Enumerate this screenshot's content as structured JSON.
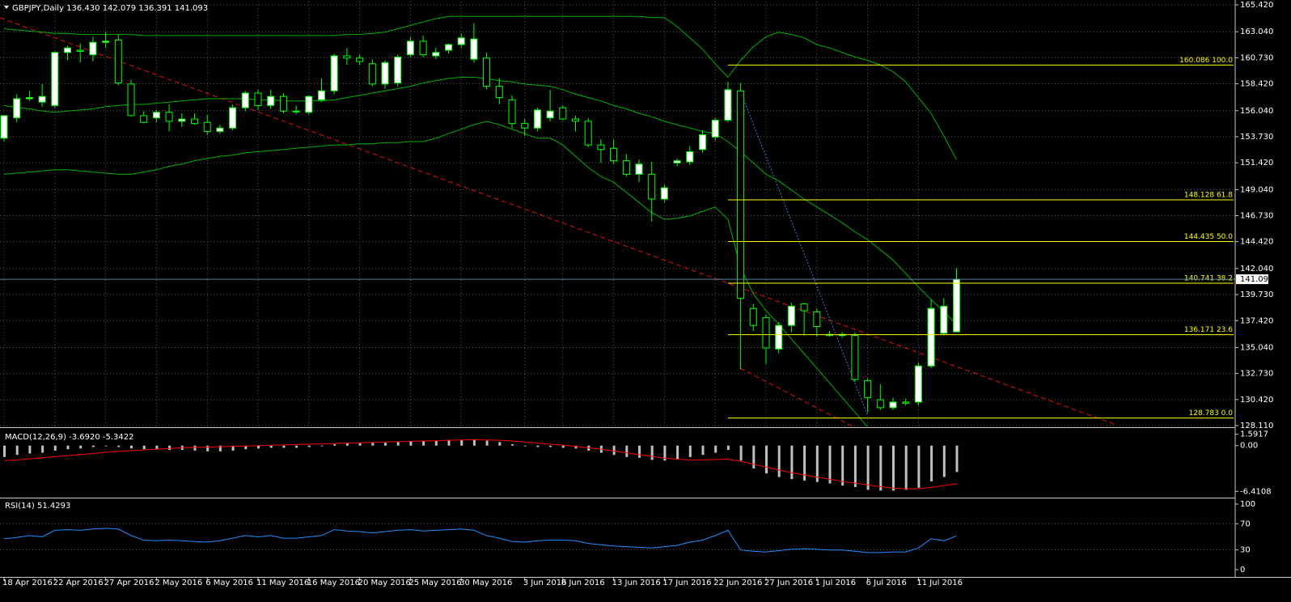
{
  "chart_data": [
    {
      "type": "candlestick",
      "title": "GBPJPY,Daily  136.430 142.079 136.391 141.093",
      "categories": [
        "18 Apr 2016",
        null,
        null,
        null,
        "22 Apr 2016",
        null,
        null,
        null,
        "27 Apr 2016",
        null,
        null,
        null,
        "2 May 2016",
        null,
        null,
        null,
        "6 May 2016",
        null,
        null,
        null,
        "11 May 2016",
        null,
        null,
        null,
        "16 May 2016",
        null,
        null,
        null,
        "20 May 2016",
        null,
        null,
        null,
        "25 May 2016",
        null,
        null,
        null,
        "30 May 2016",
        null,
        null,
        null,
        null,
        "3 Jun 2016",
        null,
        null,
        "8 Jun 2016",
        null,
        null,
        null,
        "13 Jun 2016",
        null,
        null,
        null,
        "17 Jun 2016",
        null,
        null,
        null,
        "22 Jun 2016",
        null,
        null,
        null,
        "27 Jun 2016",
        null,
        null,
        null,
        "1 Jul 2016",
        null,
        null,
        null,
        "6 Jul 2016",
        null,
        null,
        null,
        "11 Jul 2016",
        null,
        null,
        null
      ],
      "open": [
        153.6,
        155.4,
        157.1,
        156.8,
        156.5,
        161.2,
        161.4,
        161.0,
        162.1,
        162.3,
        158.4,
        155.6,
        155.4,
        155.9,
        155.1,
        155.3,
        155.0,
        154.2,
        154.5,
        156.3,
        157.6,
        156.5,
        157.3,
        156.0,
        155.9,
        157.0,
        157.8,
        160.9,
        160.7,
        160.2,
        158.4,
        158.5,
        161.0,
        162.2,
        160.9,
        161.4,
        161.9,
        160.6,
        160.7,
        158.2,
        157.0,
        154.9,
        154.5,
        155.4,
        156.3,
        155.3,
        155.1,
        153.0,
        152.7,
        151.6,
        150.4,
        150.4,
        148.2,
        151.4,
        151.5,
        152.6,
        153.7,
        155.2,
        157.8,
        138.5,
        137.7,
        134.9,
        137.0,
        138.9,
        138.2,
        136.2,
        136.1,
        136.1,
        132.1,
        130.4,
        129.7,
        130.2,
        130.2,
        133.4,
        136.3,
        136.43
      ],
      "high": [
        155.6,
        157.5,
        157.8,
        158.4,
        161.3,
        161.8,
        162.0,
        162.6,
        163.0,
        162.8,
        158.8,
        156.0,
        156.1,
        156.6,
        155.8,
        155.8,
        155.7,
        154.8,
        156.6,
        157.8,
        157.9,
        157.9,
        157.6,
        156.5,
        157.4,
        158.9,
        161.1,
        161.6,
        161.0,
        160.6,
        160.5,
        161.0,
        162.6,
        162.7,
        161.6,
        162.0,
        162.9,
        163.8,
        161.2,
        158.9,
        157.4,
        155.3,
        156.3,
        157.9,
        156.5,
        155.6,
        155.4,
        153.5,
        153.5,
        152.2,
        151.7,
        151.5,
        149.5,
        151.8,
        152.9,
        154.3,
        155.4,
        158.6,
        158.5,
        138.9,
        138.0,
        137.3,
        139.0,
        139.0,
        138.5,
        136.5,
        136.4,
        136.4,
        132.3,
        131.8,
        130.6,
        130.5,
        133.7,
        139.3,
        139.4,
        142.079
      ],
      "low": [
        153.3,
        155.0,
        156.9,
        156.4,
        156.3,
        160.5,
        160.3,
        160.4,
        161.6,
        158.3,
        155.5,
        154.9,
        155.0,
        154.2,
        154.6,
        154.8,
        153.9,
        154.0,
        154.3,
        156.0,
        156.1,
        156.2,
        155.8,
        155.7,
        155.7,
        156.8,
        157.5,
        160.1,
        160.1,
        158.2,
        158.0,
        158.2,
        160.8,
        160.8,
        160.6,
        161.1,
        161.6,
        160.3,
        157.9,
        156.6,
        154.5,
        153.8,
        154.2,
        155.1,
        155.2,
        154.2,
        152.8,
        151.4,
        151.3,
        150.2,
        149.7,
        146.2,
        147.9,
        151.1,
        151.2,
        152.3,
        153.4,
        155.0,
        133.1,
        136.5,
        133.6,
        134.5,
        136.4,
        136.1,
        136.0,
        136.0,
        135.9,
        132.0,
        129.3,
        129.5,
        129.5,
        129.9,
        129.9,
        133.2,
        136.1,
        136.391
      ],
      "close": [
        155.6,
        157.1,
        157.2,
        157.3,
        161.2,
        161.6,
        161.3,
        162.1,
        162.2,
        158.5,
        155.6,
        155.0,
        155.9,
        155.1,
        155.3,
        154.9,
        154.2,
        154.5,
        156.3,
        157.6,
        156.5,
        157.3,
        156.0,
        156.0,
        157.3,
        157.8,
        160.9,
        160.7,
        160.4,
        158.4,
        160.3,
        160.8,
        162.2,
        161.0,
        161.2,
        161.9,
        162.5,
        162.4,
        158.2,
        157.2,
        154.9,
        154.5,
        156.1,
        156.0,
        155.3,
        155.1,
        153.0,
        152.6,
        151.6,
        150.4,
        151.3,
        148.2,
        149.2,
        151.6,
        152.4,
        153.9,
        155.2,
        157.9,
        139.4,
        137.0,
        135.0,
        137.0,
        138.7,
        138.3,
        136.9,
        136.1,
        136.2,
        132.2,
        130.6,
        129.7,
        130.2,
        130.1,
        133.4,
        138.5,
        138.7,
        141.093
      ],
      "up_color": "#ffffff",
      "down_color": "#000000",
      "wick_color": "#00ff00",
      "series": [
        {
          "color": "#00b000",
          "values": [
            163.3,
            163.2,
            163.1,
            163.0,
            162.9,
            162.9,
            162.8,
            162.8,
            162.8,
            162.8,
            162.8,
            162.7,
            162.7,
            162.7,
            162.7,
            162.7,
            162.7,
            162.7,
            162.7,
            162.7,
            162.7,
            162.7,
            162.7,
            162.7,
            162.7,
            162.7,
            162.7,
            162.8,
            162.8,
            162.9,
            163.0,
            163.3,
            163.6,
            163.9,
            164.2,
            164.4,
            164.4,
            164.4,
            164.4,
            164.4,
            164.4,
            164.4,
            164.4,
            164.4,
            164.4,
            164.4,
            164.4,
            164.4,
            164.4,
            164.4,
            164.4,
            164.3,
            164.3,
            163.5,
            162.5,
            161.5,
            160.2,
            159.0,
            160.5,
            161.7,
            162.6,
            163.0,
            162.8,
            162.5,
            161.9,
            161.6,
            161.2,
            160.8,
            160.5,
            160.1,
            159.5,
            158.6,
            157.2,
            155.8,
            153.8,
            151.7
          ]
        },
        {
          "color": "#00b000",
          "values": [
            156.5,
            156.3,
            156.2,
            156.0,
            155.9,
            156.0,
            156.1,
            156.2,
            156.4,
            156.5,
            156.6,
            156.6,
            156.7,
            156.8,
            156.9,
            157.0,
            157.1,
            157.1,
            157.1,
            157.1,
            157.0,
            157.0,
            156.9,
            156.9,
            156.9,
            156.9,
            157.0,
            157.2,
            157.4,
            157.6,
            157.8,
            158.0,
            158.2,
            158.5,
            158.7,
            158.9,
            159.0,
            159.0,
            158.9,
            158.7,
            158.6,
            158.4,
            158.3,
            158.2,
            157.9,
            157.5,
            157.2,
            156.9,
            156.5,
            156.2,
            155.8,
            155.5,
            155.1,
            154.8,
            154.5,
            154.2,
            154.0,
            153.3,
            152.4,
            151.4,
            150.4,
            149.8,
            149.0,
            148.2,
            147.5,
            146.8,
            146.1,
            145.3,
            144.6,
            143.7,
            142.8,
            141.6,
            140.4,
            139.3,
            138.2,
            137.1
          ]
        },
        {
          "color": "#00b000",
          "values": [
            150.4,
            150.5,
            150.6,
            150.7,
            150.8,
            150.8,
            150.7,
            150.6,
            150.5,
            150.4,
            150.4,
            150.6,
            150.8,
            151.1,
            151.3,
            151.6,
            151.8,
            152.0,
            152.1,
            152.3,
            152.4,
            152.5,
            152.6,
            152.7,
            152.8,
            152.9,
            153.0,
            153.0,
            153.1,
            153.1,
            153.2,
            153.2,
            153.3,
            153.3,
            153.6,
            154.0,
            154.4,
            154.8,
            155.1,
            154.8,
            154.4,
            154.0,
            153.6,
            153.6,
            153.0,
            152.0,
            151.0,
            150.2,
            149.7,
            148.8,
            147.9,
            147.0,
            146.4,
            146.5,
            146.7,
            147.1,
            147.5,
            146.4,
            142.1,
            139.8,
            138.3,
            137.1,
            135.8,
            134.5,
            133.2,
            131.9,
            130.6,
            129.3,
            128.0,
            null,
            null,
            null,
            null,
            null,
            null,
            null
          ]
        }
      ],
      "fib_levels": [
        {
          "value": 160.086,
          "label": "160.086 100.0"
        },
        {
          "value": 148.128,
          "label": "148.128 61.8"
        },
        {
          "value": 144.435,
          "label": "144.435 50.0"
        },
        {
          "value": 140.741,
          "label": "140.741 38.2"
        },
        {
          "value": 136.171,
          "label": "136.171 23.6"
        },
        {
          "value": 128.783,
          "label": "128.783 0.0"
        }
      ],
      "fib_color": "#ffff00",
      "last_price": 141.093,
      "ylim": [
        128.04,
        165.71
      ],
      "yticks": [
        {
          "value": 165.42,
          "label": "165.420"
        },
        {
          "value": 163.04,
          "label": "163.040"
        },
        {
          "value": 160.73,
          "label": "160.730"
        },
        {
          "value": 158.42,
          "label": "158.420"
        },
        {
          "value": 156.04,
          "label": "156.040"
        },
        {
          "value": 153.73,
          "label": "153.730"
        },
        {
          "value": 151.42,
          "label": "151.420"
        },
        {
          "value": 149.04,
          "label": "149.040"
        },
        {
          "value": 146.73,
          "label": "146.730"
        },
        {
          "value": 144.42,
          "label": "144.420"
        },
        {
          "value": 142.04,
          "label": "142.040"
        },
        {
          "value": 139.73,
          "label": "139.730"
        },
        {
          "value": 137.42,
          "label": "137.420"
        },
        {
          "value": 135.04,
          "label": "135.040"
        },
        {
          "value": 132.73,
          "label": "132.730"
        },
        {
          "value": 130.42,
          "label": "130.420"
        },
        {
          "value": 128.11,
          "label": "128.110"
        }
      ],
      "grid": true
    },
    {
      "type": "bar",
      "title": "MACD(12,26,9) -3.6920 -5.3422",
      "values": [
        -1.6,
        -1.3,
        -1.1,
        -1.0,
        -0.7,
        -0.5,
        -0.4,
        -0.2,
        -0.1,
        -0.2,
        -0.4,
        -0.5,
        -0.5,
        -0.6,
        -0.6,
        -0.7,
        -0.8,
        -0.8,
        -0.7,
        -0.5,
        -0.4,
        -0.3,
        -0.3,
        -0.3,
        -0.2,
        -0.1,
        0.2,
        0.3,
        0.4,
        0.4,
        0.4,
        0.5,
        0.6,
        0.7,
        0.7,
        0.8,
        0.8,
        0.9,
        0.7,
        0.5,
        0.2,
        -0.1,
        -0.2,
        -0.2,
        -0.3,
        -0.4,
        -0.7,
        -1.0,
        -1.3,
        -1.6,
        -1.7,
        -2.0,
        -2.1,
        -1.9,
        -1.6,
        -1.3,
        -1.0,
        -0.6,
        -2.1,
        -3.2,
        -3.9,
        -4.4,
        -4.7,
        -4.9,
        -5.1,
        -5.3,
        -5.6,
        -5.8,
        -6.2,
        -6.3,
        -6.3,
        -6.2,
        -5.9,
        -5.0,
        -4.4,
        -3.692
      ],
      "color": "#c0c0c0",
      "series": [
        {
          "color": "#ff0000",
          "values": [
            -2.1,
            -2.0,
            -1.85,
            -1.7,
            -1.55,
            -1.4,
            -1.25,
            -1.1,
            -0.95,
            -0.8,
            -0.7,
            -0.6,
            -0.5,
            -0.4,
            -0.3,
            -0.25,
            -0.2,
            -0.15,
            -0.1,
            -0.05,
            0,
            0.05,
            0.1,
            0.15,
            0.2,
            0.25,
            0.3,
            0.35,
            0.4,
            0.45,
            0.5,
            0.55,
            0.6,
            0.65,
            0.7,
            0.75,
            0.8,
            0.82,
            0.8,
            0.75,
            0.65,
            0.5,
            0.35,
            0.2,
            0.05,
            -0.1,
            -0.3,
            -0.5,
            -0.75,
            -1.0,
            -1.25,
            -1.5,
            -1.75,
            -1.9,
            -2.0,
            -2.0,
            -1.95,
            -1.9,
            -2.2,
            -2.6,
            -3.0,
            -3.4,
            -3.8,
            -4.1,
            -4.4,
            -4.7,
            -5.0,
            -5.25,
            -5.5,
            -5.75,
            -5.95,
            -6.05,
            -6.05,
            -5.85,
            -5.6,
            -5.3422
          ]
        }
      ],
      "ylim": [
        -7.17,
        2.35
      ],
      "yticks": [
        1.5917,
        {
          "value": 0,
          "label": "0.00"
        },
        -6.4108
      ],
      "grid": false
    },
    {
      "type": "line",
      "title": "RSI(14) 51.4293",
      "values": [
        47,
        49,
        52,
        50,
        60,
        61,
        60,
        62,
        63,
        62,
        52,
        45,
        44,
        45,
        44,
        43,
        42,
        44,
        48,
        52,
        50,
        52,
        48,
        48,
        50,
        52,
        61,
        59,
        58,
        56,
        58,
        60,
        61,
        59,
        60,
        61,
        62,
        60,
        52,
        48,
        43,
        42,
        44,
        45,
        45,
        44,
        40,
        38,
        36,
        35,
        34,
        33,
        35,
        37,
        42,
        45,
        52,
        60,
        30,
        28,
        27,
        29,
        31,
        32,
        31,
        30,
        30,
        28,
        26,
        26,
        27,
        27,
        33,
        47,
        44,
        51.4293
      ],
      "color": "#1e90ff",
      "ylim": [
        -9.9,
        107.4
      ],
      "yticks": [
        100,
        70,
        30,
        0
      ],
      "levels": [
        70,
        30
      ],
      "grid": false
    }
  ]
}
